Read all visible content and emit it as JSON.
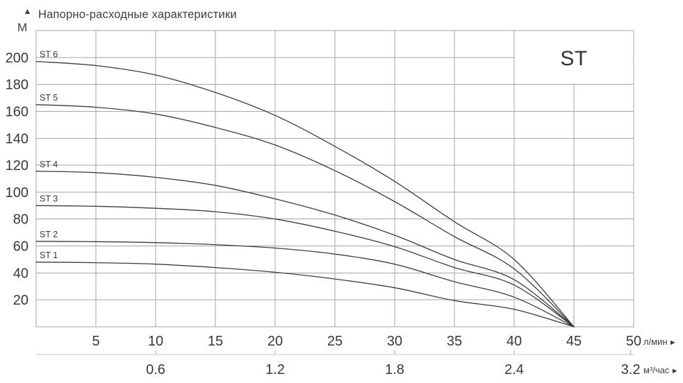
{
  "header": {
    "up_arrow": "▲",
    "y_axis_unit": "М",
    "title": "Напорно-расходные характеристики"
  },
  "chart_data": {
    "type": "line",
    "title": "Напорно-расходные характеристики",
    "family_label": "ST",
    "ylabel": "М",
    "xlabel_primary": "л/мин",
    "xlabel_secondary": "м³/час",
    "axis_arrow_glyph": "▶",
    "xlim": [
      0,
      50
    ],
    "ylim": [
      0,
      220
    ],
    "grid": true,
    "legend_position": "top-right-box",
    "y_ticks": [
      20,
      40,
      60,
      80,
      100,
      120,
      140,
      160,
      180,
      200
    ],
    "x_ticks_primary": [
      5,
      10,
      15,
      20,
      25,
      30,
      35,
      40,
      45,
      50
    ],
    "x_ticks_secondary": [
      {
        "label": "0.6",
        "at_lmin": 10,
        "tick": true
      },
      {
        "label": "1.2",
        "at_lmin": 20,
        "tick": true
      },
      {
        "label": "1.8",
        "at_lmin": 30,
        "tick": true
      },
      {
        "label": "2.4",
        "at_lmin": 40,
        "tick": true
      },
      {
        "label": "3.2",
        "at_lmin": 49.75,
        "tick": true
      }
    ],
    "series": [
      {
        "name": "ST 6",
        "points": [
          [
            0,
            197
          ],
          [
            5,
            194
          ],
          [
            10,
            187
          ],
          [
            15,
            174
          ],
          [
            20,
            157
          ],
          [
            25,
            134
          ],
          [
            30,
            108
          ],
          [
            35,
            78
          ],
          [
            40,
            50
          ],
          [
            45,
            0
          ]
        ]
      },
      {
        "name": "ST 5",
        "points": [
          [
            0,
            165
          ],
          [
            5,
            163
          ],
          [
            10,
            158
          ],
          [
            15,
            148
          ],
          [
            20,
            135
          ],
          [
            25,
            116
          ],
          [
            30,
            93
          ],
          [
            35,
            67
          ],
          [
            40,
            43
          ],
          [
            45,
            0
          ]
        ]
      },
      {
        "name": "ST 4",
        "points": [
          [
            0,
            115.5
          ],
          [
            5,
            114.5
          ],
          [
            10,
            111
          ],
          [
            15,
            105
          ],
          [
            20,
            95
          ],
          [
            25,
            83
          ],
          [
            30,
            68
          ],
          [
            35,
            50
          ],
          [
            40,
            35
          ],
          [
            45,
            0
          ]
        ]
      },
      {
        "name": "ST 3",
        "points": [
          [
            0,
            90
          ],
          [
            5,
            89.5
          ],
          [
            10,
            88
          ],
          [
            15,
            85.5
          ],
          [
            20,
            80
          ],
          [
            25,
            71
          ],
          [
            30,
            59.5
          ],
          [
            35,
            44
          ],
          [
            40,
            31
          ],
          [
            45,
            0
          ]
        ]
      },
      {
        "name": "ST 2",
        "points": [
          [
            0,
            63.5
          ],
          [
            5,
            63.2
          ],
          [
            10,
            62.5
          ],
          [
            15,
            61
          ],
          [
            20,
            58.5
          ],
          [
            25,
            54
          ],
          [
            30,
            46.5
          ],
          [
            35,
            33.5
          ],
          [
            40,
            22
          ],
          [
            45,
            0
          ]
        ]
      },
      {
        "name": "ST 1",
        "points": [
          [
            0,
            48
          ],
          [
            5,
            47.6
          ],
          [
            10,
            46.5
          ],
          [
            15,
            44
          ],
          [
            20,
            40.5
          ],
          [
            25,
            35.5
          ],
          [
            30,
            29
          ],
          [
            35,
            19.5
          ],
          [
            40,
            13
          ],
          [
            45,
            0
          ]
        ]
      }
    ],
    "colors": {
      "background": "#ffffff",
      "curve": "#3b3b3b",
      "grid": "#a6a6a6",
      "secondary_axis": "#c6c6c6",
      "text": "#383838",
      "title": "#3d3d3d"
    }
  }
}
